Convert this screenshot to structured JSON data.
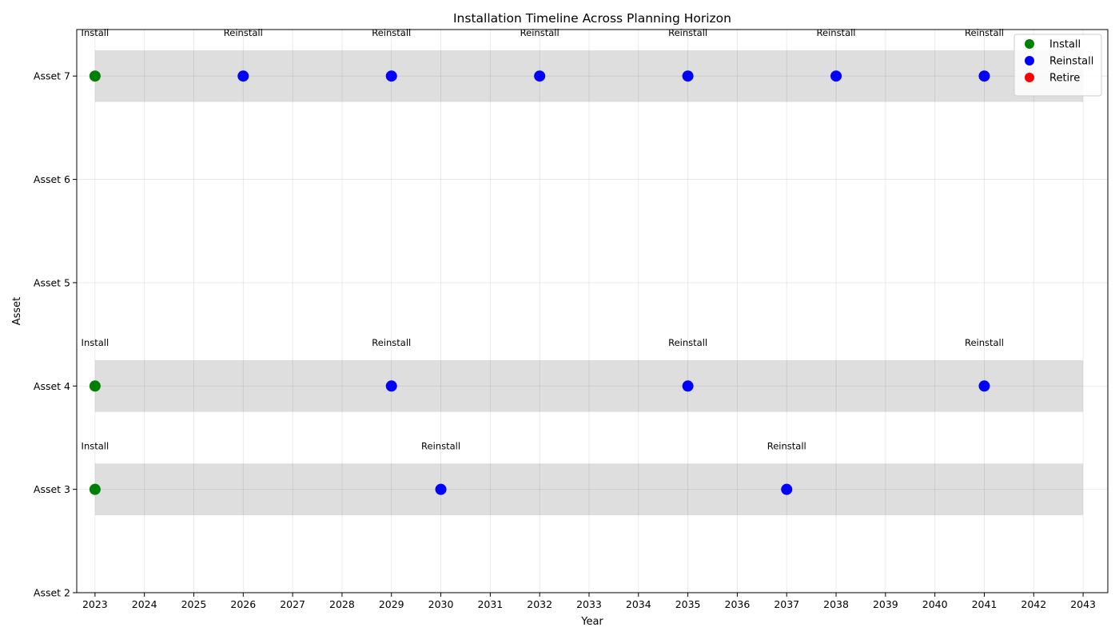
{
  "chart_data": {
    "type": "scatter",
    "title": "Installation Timeline Across Planning Horizon",
    "xlabel": "Year",
    "ylabel": "Asset",
    "xlim": [
      2022.63,
      2043.5
    ],
    "ylim": [
      2,
      7.45
    ],
    "x_ticks": [
      2023,
      2024,
      2025,
      2026,
      2027,
      2028,
      2029,
      2030,
      2031,
      2032,
      2033,
      2034,
      2035,
      2036,
      2037,
      2038,
      2039,
      2040,
      2041,
      2042,
      2043
    ],
    "y_ticks": [
      {
        "value": 2,
        "label": "Asset 2"
      },
      {
        "value": 3,
        "label": "Asset 3"
      },
      {
        "value": 4,
        "label": "Asset 4"
      },
      {
        "value": 5,
        "label": "Asset 5"
      },
      {
        "value": 6,
        "label": "Asset 6"
      },
      {
        "value": 7,
        "label": "Asset 7"
      }
    ],
    "grid": true,
    "legend_position": "top-right",
    "lifespan_bands": [
      {
        "asset": 3,
        "start": 2023,
        "end": 2043
      },
      {
        "asset": 4,
        "start": 2023,
        "end": 2043
      },
      {
        "asset": 7,
        "start": 2023,
        "end": 2043
      }
    ],
    "band_color": "#dedede",
    "series": [
      {
        "name": "Install",
        "color": "#008000",
        "points": [
          {
            "x": 2023,
            "y": 7,
            "label": "Install"
          },
          {
            "x": 2023,
            "y": 4,
            "label": "Install"
          },
          {
            "x": 2023,
            "y": 3,
            "label": "Install"
          }
        ]
      },
      {
        "name": "Reinstall",
        "color": "#0000ff",
        "points": [
          {
            "x": 2026,
            "y": 7,
            "label": "Reinstall"
          },
          {
            "x": 2029,
            "y": 7,
            "label": "Reinstall"
          },
          {
            "x": 2032,
            "y": 7,
            "label": "Reinstall"
          },
          {
            "x": 2035,
            "y": 7,
            "label": "Reinstall"
          },
          {
            "x": 2038,
            "y": 7,
            "label": "Reinstall"
          },
          {
            "x": 2041,
            "y": 7,
            "label": "Reinstall"
          },
          {
            "x": 2029,
            "y": 4,
            "label": "Reinstall"
          },
          {
            "x": 2035,
            "y": 4,
            "label": "Reinstall"
          },
          {
            "x": 2041,
            "y": 4,
            "label": "Reinstall"
          },
          {
            "x": 2030,
            "y": 3,
            "label": "Reinstall"
          },
          {
            "x": 2037,
            "y": 3,
            "label": "Reinstall"
          }
        ]
      },
      {
        "name": "Retire",
        "color": "#ff0000",
        "points": []
      }
    ]
  }
}
